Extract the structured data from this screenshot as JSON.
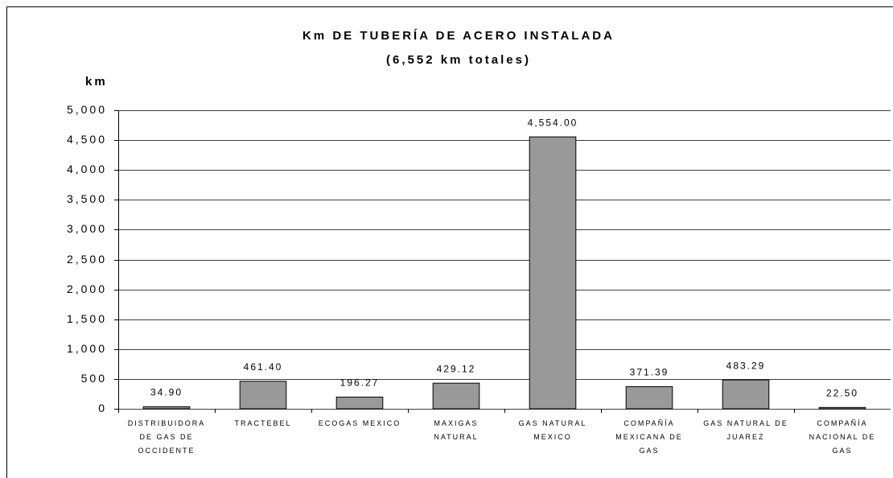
{
  "chart_data": {
    "type": "bar",
    "title": "Km DE TUBERÍA DE ACERO INSTALADA",
    "subtitle": "(6,552 km totales)",
    "y_label": "km",
    "categories": [
      "DISTRIBUIDORA DE GAS DE OCCIDENTE",
      "TRACTEBEL",
      "ECOGAS MEXICO",
      "MAXIGAS NATURAL",
      "GAS NATURAL MEXICO",
      "COMPAÑÍA MEXICANA DE GAS",
      "GAS NATURAL DE JUAREZ",
      "COMPAÑÍA NACIONAL DE GAS"
    ],
    "values": [
      34.9,
      461.4,
      196.27,
      429.12,
      4554,
      371.39,
      483.29,
      22.5
    ],
    "value_labels": [
      "34.90",
      "461.40",
      "196.27",
      "429.12",
      "4,554.00",
      "371.39",
      "483.29",
      "22.50"
    ],
    "color": "#999999",
    "ylim": [
      0,
      5000
    ],
    "yticks": [
      0,
      500,
      {
        "value": 1000,
        "label": "1,000"
      },
      {
        "value": 1500,
        "label": "1,500"
      },
      {
        "value": 2000,
        "label": "2,000"
      },
      {
        "value": 2500,
        "label": "2,500"
      },
      {
        "value": 3000,
        "label": "3,000"
      },
      {
        "value": 3500,
        "label": "3,500"
      },
      {
        "value": 4000,
        "label": "4,000"
      },
      {
        "value": 4500,
        "label": "4,500"
      },
      {
        "value": 5000,
        "label": "5,000"
      }
    ],
    "grid": true
  }
}
